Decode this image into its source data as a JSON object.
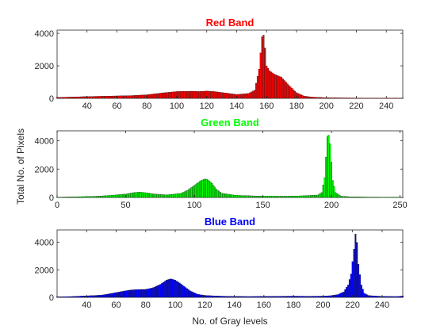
{
  "figure": {
    "ylabel": "Total No. of Pixels",
    "xlabel": "No. of Gray levels"
  },
  "chart_data": [
    {
      "type": "bar",
      "title": "Red Band",
      "color": "#ff0000",
      "xlim": [
        20,
        251
      ],
      "ylim": [
        0,
        4200
      ],
      "xticks": [
        40,
        60,
        80,
        100,
        120,
        140,
        160,
        180,
        200,
        220,
        240
      ],
      "yticks": [
        0,
        2000,
        4000
      ],
      "points": [
        [
          20,
          60
        ],
        [
          30,
          80
        ],
        [
          40,
          110
        ],
        [
          50,
          130
        ],
        [
          60,
          150
        ],
        [
          70,
          170
        ],
        [
          80,
          220
        ],
        [
          90,
          330
        ],
        [
          100,
          420
        ],
        [
          110,
          440
        ],
        [
          115,
          420
        ],
        [
          120,
          450
        ],
        [
          125,
          420
        ],
        [
          130,
          360
        ],
        [
          140,
          240
        ],
        [
          148,
          300
        ],
        [
          152,
          500
        ],
        [
          155,
          1800
        ],
        [
          157,
          3800
        ],
        [
          158,
          3900
        ],
        [
          159,
          3100
        ],
        [
          160,
          2000
        ],
        [
          162,
          1700
        ],
        [
          165,
          1500
        ],
        [
          170,
          1300
        ],
        [
          175,
          800
        ],
        [
          180,
          350
        ],
        [
          185,
          140
        ],
        [
          190,
          80
        ],
        [
          200,
          40
        ],
        [
          220,
          20
        ],
        [
          250,
          10
        ]
      ]
    },
    {
      "type": "bar",
      "title": "Green Band",
      "color": "#00ff00",
      "xlim": [
        0,
        252
      ],
      "ylim": [
        0,
        4700
      ],
      "xticks": [
        0,
        50,
        100,
        150,
        200,
        250
      ],
      "yticks": [
        0,
        2000,
        4000
      ],
      "points": [
        [
          0,
          20
        ],
        [
          10,
          40
        ],
        [
          20,
          60
        ],
        [
          30,
          90
        ],
        [
          40,
          150
        ],
        [
          50,
          240
        ],
        [
          55,
          330
        ],
        [
          60,
          380
        ],
        [
          65,
          330
        ],
        [
          70,
          250
        ],
        [
          80,
          180
        ],
        [
          90,
          280
        ],
        [
          95,
          500
        ],
        [
          100,
          850
        ],
        [
          105,
          1200
        ],
        [
          108,
          1300
        ],
        [
          110,
          1250
        ],
        [
          113,
          1000
        ],
        [
          116,
          600
        ],
        [
          120,
          300
        ],
        [
          130,
          150
        ],
        [
          150,
          90
        ],
        [
          170,
          90
        ],
        [
          180,
          120
        ],
        [
          190,
          170
        ],
        [
          193,
          350
        ],
        [
          195,
          1400
        ],
        [
          197,
          4300
        ],
        [
          198,
          4400
        ],
        [
          199,
          3800
        ],
        [
          201,
          1200
        ],
        [
          203,
          350
        ],
        [
          207,
          90
        ],
        [
          215,
          40
        ],
        [
          230,
          25
        ],
        [
          252,
          10
        ]
      ]
    },
    {
      "type": "bar",
      "title": "Blue Band",
      "color": "#0000ff",
      "xlim": [
        20,
        254
      ],
      "ylim": [
        0,
        4900
      ],
      "xticks": [
        40,
        60,
        80,
        100,
        120,
        140,
        160,
        180,
        200,
        220,
        240
      ],
      "yticks": [
        0,
        2000,
        4000
      ],
      "points": [
        [
          20,
          40
        ],
        [
          30,
          60
        ],
        [
          40,
          110
        ],
        [
          50,
          160
        ],
        [
          55,
          250
        ],
        [
          60,
          350
        ],
        [
          65,
          450
        ],
        [
          70,
          540
        ],
        [
          75,
          570
        ],
        [
          80,
          580
        ],
        [
          85,
          700
        ],
        [
          90,
          950
        ],
        [
          94,
          1250
        ],
        [
          97,
          1350
        ],
        [
          100,
          1250
        ],
        [
          103,
          1050
        ],
        [
          106,
          800
        ],
        [
          110,
          480
        ],
        [
          115,
          230
        ],
        [
          120,
          140
        ],
        [
          130,
          90
        ],
        [
          140,
          70
        ],
        [
          150,
          60
        ],
        [
          160,
          70
        ],
        [
          170,
          80
        ],
        [
          180,
          90
        ],
        [
          190,
          80
        ],
        [
          200,
          90
        ],
        [
          205,
          120
        ],
        [
          210,
          200
        ],
        [
          214,
          400
        ],
        [
          217,
          900
        ],
        [
          219,
          1700
        ],
        [
          221,
          3500
        ],
        [
          222,
          4600
        ],
        [
          223,
          4000
        ],
        [
          224,
          2400
        ],
        [
          226,
          900
        ],
        [
          228,
          300
        ],
        [
          231,
          130
        ],
        [
          240,
          70
        ],
        [
          250,
          60
        ],
        [
          254,
          100
        ]
      ]
    }
  ]
}
